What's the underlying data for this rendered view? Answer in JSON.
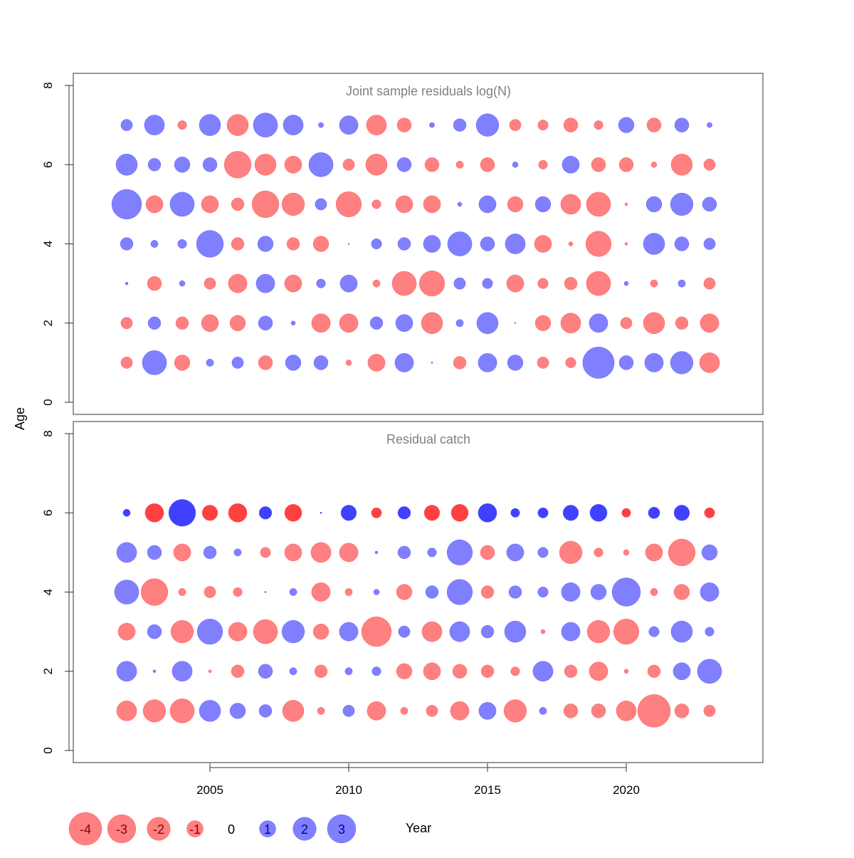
{
  "chart_data": {
    "type": "bubble",
    "xlabel": "Year",
    "ylabel": "Age",
    "years": [
      2002,
      2003,
      2004,
      2005,
      2006,
      2007,
      2008,
      2009,
      2010,
      2011,
      2012,
      2013,
      2014,
      2015,
      2016,
      2017,
      2018,
      2019,
      2020,
      2021,
      2022,
      2023
    ],
    "x_ticks": [
      "2005",
      "2010",
      "2015",
      "2020"
    ],
    "y_ticks": [
      "0",
      "2",
      "4",
      "6",
      "8"
    ],
    "ylim": [
      0,
      8
    ],
    "colors": {
      "negative": "#ff8080",
      "positive": "#8080ff",
      "negative_plus": "#ff4040",
      "positive_plus": "#4040ff",
      "title": "#808080"
    },
    "panels": [
      {
        "title": "Joint sample residuals log(N)",
        "dark_age": null,
        "ages": [
          1,
          2,
          3,
          4,
          5,
          6,
          7
        ],
        "residuals": {
          "1": [
            -0.5,
            2.2,
            -0.9,
            0.2,
            0.5,
            -0.75,
            0.9,
            0.75,
            -0.12,
            -1.1,
            1.3,
            0.01,
            -0.6,
            1.3,
            0.9,
            -0.5,
            -0.4,
            3.7,
            0.75,
            1.3,
            1.9,
            -1.5
          ],
          "2": [
            -0.5,
            0.6,
            -0.6,
            -1.1,
            -0.9,
            0.75,
            0.07,
            -1.3,
            -1.3,
            0.6,
            1.1,
            -1.7,
            0.2,
            1.7,
            -0.01,
            -0.9,
            -1.5,
            1.3,
            -0.5,
            -1.7,
            -0.6,
            -1.3
          ],
          "3": [
            0.03,
            -0.75,
            0.12,
            -0.5,
            -1.3,
            1.3,
            -1.1,
            0.3,
            1.1,
            -0.2,
            -2.2,
            -2.4,
            0.5,
            0.4,
            -1.1,
            -0.4,
            -0.6,
            -2.2,
            0.07,
            -0.2,
            0.2,
            -0.5
          ],
          "4": [
            0.6,
            0.2,
            0.3,
            2.7,
            -0.6,
            0.9,
            -0.6,
            -0.9,
            -0.01,
            0.4,
            0.6,
            1.1,
            2.2,
            0.75,
            1.5,
            -1.1,
            -0.07,
            -2.4,
            -0.03,
            1.7,
            0.75,
            0.5
          ],
          "5": [
            3.3,
            -1.1,
            2.2,
            -1.1,
            -0.6,
            -2.7,
            -1.9,
            0.5,
            -2.4,
            -0.3,
            -1.1,
            -1.1,
            0.07,
            1.1,
            -0.9,
            0.9,
            -1.5,
            -2.2,
            -0.03,
            0.9,
            1.9,
            0.75
          ],
          "6": [
            1.7,
            0.6,
            0.9,
            0.75,
            -2.7,
            -1.7,
            -1.1,
            2.2,
            -0.5,
            -1.7,
            0.75,
            -0.75,
            -0.2,
            -0.75,
            0.12,
            -0.3,
            1.1,
            -0.75,
            -0.75,
            -0.12,
            -1.7,
            -0.5
          ],
          "7": [
            0.5,
            1.5,
            -0.3,
            1.7,
            -1.7,
            2.2,
            1.5,
            0.1,
            1.3,
            -1.5,
            -0.75,
            0.1,
            0.6,
            1.9,
            -0.5,
            -0.4,
            -0.75,
            -0.3,
            0.9,
            -0.75,
            0.75,
            0.1
          ]
        }
      },
      {
        "title": "Residual catch",
        "dark_age": 6,
        "ages": [
          1,
          2,
          3,
          4,
          5,
          6
        ],
        "residuals": {
          "1": [
            -1.5,
            -1.9,
            -2.2,
            1.7,
            0.9,
            0.6,
            -1.7,
            -0.2,
            0.5,
            -1.3,
            -0.2,
            -0.5,
            -1.3,
            1.1,
            -1.9,
            0.2,
            -0.75,
            -0.75,
            -1.5,
            -4.0,
            -0.75,
            -0.5
          ],
          "2": [
            1.5,
            0.03,
            1.5,
            -0.03,
            -0.6,
            0.75,
            0.2,
            -0.6,
            0.2,
            0.3,
            -0.9,
            -1.1,
            -0.75,
            -0.6,
            -0.3,
            1.5,
            -0.6,
            -1.3,
            -0.07,
            -0.6,
            1.1,
            2.2
          ],
          "3": [
            -1.1,
            0.75,
            -1.9,
            2.4,
            -1.3,
            -2.2,
            1.9,
            -0.9,
            1.3,
            -3.3,
            0.5,
            -1.5,
            1.5,
            0.6,
            1.7,
            -0.07,
            1.3,
            -1.9,
            -2.4,
            0.4,
            1.7,
            0.3
          ],
          "4": [
            2.2,
            -2.7,
            -0.2,
            -0.5,
            -0.3,
            0.01,
            0.2,
            -1.3,
            -0.2,
            0.12,
            -0.9,
            0.6,
            2.4,
            -0.6,
            0.6,
            0.4,
            1.3,
            0.9,
            3.0,
            -0.2,
            -0.9,
            1.3
          ],
          "5": [
            1.5,
            0.75,
            -1.1,
            0.6,
            0.2,
            -0.4,
            -1.1,
            -1.5,
            -1.3,
            0.03,
            0.6,
            0.3,
            2.4,
            -0.75,
            1.1,
            0.4,
            -1.9,
            -0.3,
            -0.12,
            -1.1,
            -2.7,
            0.9
          ],
          "6": [
            0.2,
            -1.3,
            2.7,
            -0.9,
            -1.3,
            0.6,
            -1.1,
            0.01,
            0.9,
            -0.4,
            0.6,
            -0.9,
            -1.1,
            1.3,
            0.3,
            0.4,
            0.9,
            1.1,
            -0.3,
            0.5,
            0.9,
            -0.4
          ]
        }
      }
    ],
    "legend": {
      "values": [
        -4,
        -3,
        -2,
        -1,
        0,
        1,
        2,
        3
      ],
      "labels": [
        "-4",
        "-3",
        "-2",
        "-1",
        "0",
        "1",
        "2",
        "3"
      ]
    }
  }
}
